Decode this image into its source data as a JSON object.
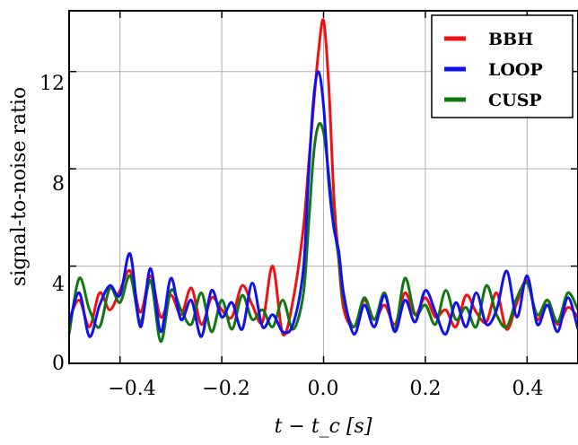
{
  "chart_data": {
    "type": "line",
    "xlabel": "t − t_c [s]",
    "ylabel": "signal-to-noise ratio",
    "xlim": [
      -0.5,
      0.5
    ],
    "ylim": [
      0,
      14.5
    ],
    "x_ticks": [
      -0.4,
      -0.2,
      0.0,
      0.2,
      0.4
    ],
    "x_tick_labels": [
      "−0.4",
      "−0.2",
      "0.0",
      "0.2",
      "0.4"
    ],
    "y_ticks": [
      0,
      4,
      8,
      12
    ],
    "y_tick_labels": [
      "0",
      "4",
      "8",
      "12"
    ],
    "grid": true,
    "legend_position": "top-right",
    "series": [
      {
        "name": "BBH",
        "color": "#ee1111",
        "x": [
          -0.5,
          -0.48,
          -0.46,
          -0.44,
          -0.42,
          -0.4,
          -0.38,
          -0.36,
          -0.34,
          -0.32,
          -0.3,
          -0.28,
          -0.26,
          -0.24,
          -0.22,
          -0.2,
          -0.18,
          -0.16,
          -0.14,
          -0.12,
          -0.1,
          -0.08,
          -0.06,
          -0.04,
          -0.03,
          -0.02,
          -0.01,
          0.0,
          0.01,
          0.02,
          0.03,
          0.04,
          0.06,
          0.08,
          0.1,
          0.12,
          0.14,
          0.16,
          0.18,
          0.2,
          0.22,
          0.24,
          0.26,
          0.28,
          0.3,
          0.32,
          0.34,
          0.36,
          0.38,
          0.4,
          0.42,
          0.44,
          0.46,
          0.48,
          0.5
        ],
        "y": [
          1.8,
          2.6,
          1.5,
          2.9,
          2.2,
          3.0,
          3.8,
          2.1,
          3.6,
          1.9,
          2.8,
          2.0,
          3.1,
          1.6,
          2.7,
          2.2,
          1.9,
          3.2,
          2.4,
          1.7,
          4.0,
          1.2,
          2.6,
          5.5,
          8.0,
          10.5,
          12.8,
          14.1,
          11.5,
          7.0,
          4.2,
          2.2,
          1.5,
          2.6,
          1.8,
          2.4,
          1.6,
          2.9,
          2.0,
          2.7,
          1.9,
          2.2,
          1.5,
          2.8,
          2.1,
          1.7,
          2.9,
          1.4,
          2.5,
          3.4,
          1.8,
          2.6,
          1.6,
          2.3,
          1.9
        ]
      },
      {
        "name": "LOOP",
        "color": "#1111ee",
        "x": [
          -0.5,
          -0.48,
          -0.46,
          -0.44,
          -0.42,
          -0.4,
          -0.38,
          -0.36,
          -0.34,
          -0.32,
          -0.3,
          -0.28,
          -0.26,
          -0.24,
          -0.22,
          -0.2,
          -0.18,
          -0.16,
          -0.14,
          -0.12,
          -0.1,
          -0.08,
          -0.06,
          -0.04,
          -0.03,
          -0.02,
          -0.01,
          0.0,
          0.01,
          0.02,
          0.03,
          0.04,
          0.06,
          0.08,
          0.1,
          0.12,
          0.14,
          0.16,
          0.18,
          0.2,
          0.22,
          0.24,
          0.26,
          0.28,
          0.3,
          0.32,
          0.34,
          0.36,
          0.38,
          0.4,
          0.42,
          0.44,
          0.46,
          0.48,
          0.5
        ],
        "y": [
          1.6,
          2.9,
          1.1,
          2.4,
          3.2,
          2.8,
          4.5,
          1.5,
          3.9,
          1.3,
          3.5,
          1.8,
          2.6,
          1.1,
          3.0,
          1.9,
          2.5,
          1.4,
          3.3,
          1.5,
          2.0,
          1.3,
          1.6,
          3.8,
          7.5,
          10.8,
          12.0,
          10.6,
          7.5,
          5.6,
          4.6,
          2.8,
          1.2,
          2.4,
          1.5,
          2.8,
          1.3,
          2.6,
          1.7,
          3.0,
          2.1,
          1.2,
          2.5,
          1.5,
          2.9,
          1.6,
          2.2,
          3.8,
          1.9,
          3.6,
          1.6,
          2.4,
          1.3,
          2.7,
          1.4
        ]
      },
      {
        "name": "CUSP",
        "color": "#117711",
        "x": [
          -0.5,
          -0.48,
          -0.46,
          -0.44,
          -0.42,
          -0.4,
          -0.38,
          -0.36,
          -0.34,
          -0.32,
          -0.3,
          -0.28,
          -0.26,
          -0.24,
          -0.22,
          -0.2,
          -0.18,
          -0.16,
          -0.14,
          -0.12,
          -0.1,
          -0.08,
          -0.06,
          -0.04,
          -0.03,
          -0.02,
          -0.01,
          0.0,
          0.01,
          0.02,
          0.03,
          0.04,
          0.06,
          0.08,
          0.1,
          0.12,
          0.14,
          0.16,
          0.18,
          0.2,
          0.22,
          0.24,
          0.26,
          0.28,
          0.3,
          0.32,
          0.34,
          0.36,
          0.38,
          0.4,
          0.42,
          0.44,
          0.46,
          0.48,
          0.5
        ],
        "y": [
          1.2,
          3.5,
          2.2,
          1.5,
          3.1,
          2.5,
          3.6,
          1.7,
          3.4,
          0.9,
          3.0,
          2.2,
          1.6,
          2.9,
          1.3,
          2.6,
          1.4,
          2.8,
          1.8,
          2.2,
          1.5,
          2.6,
          1.4,
          2.8,
          5.5,
          8.5,
          9.8,
          9.5,
          7.8,
          5.8,
          4.3,
          2.6,
          1.5,
          2.7,
          1.8,
          2.9,
          1.4,
          3.5,
          2.0,
          2.4,
          1.6,
          3.0,
          1.8,
          2.3,
          1.5,
          3.2,
          2.0,
          1.5,
          2.7,
          3.3,
          2.0,
          2.6,
          1.7,
          2.9,
          2.2
        ]
      }
    ]
  }
}
